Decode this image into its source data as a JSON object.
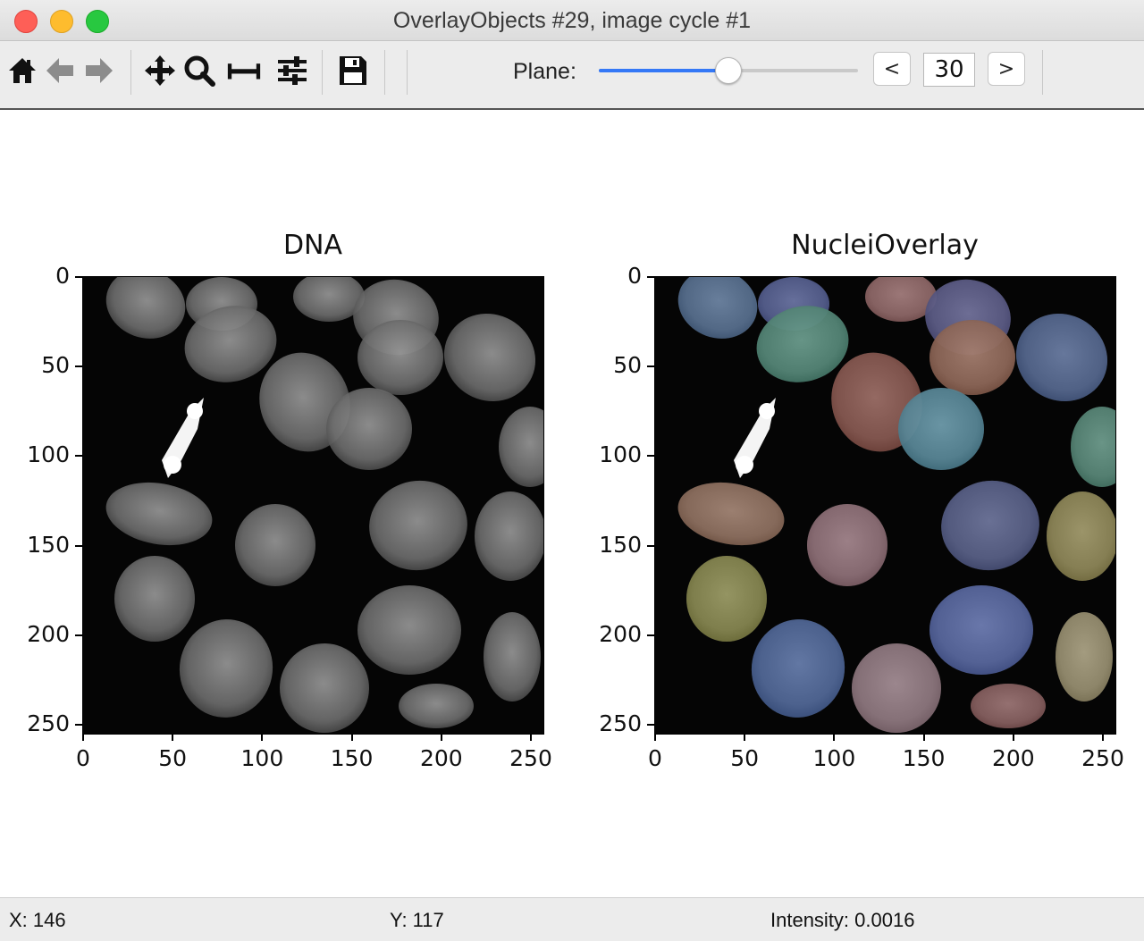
{
  "window": {
    "title": "OverlayObjects #29, image cycle #1"
  },
  "toolbar": {
    "icons": [
      "home-icon",
      "back-arrow-icon",
      "forward-arrow-icon",
      "pan-icon",
      "zoom-icon",
      "subplots-icon",
      "configure-icon",
      "save-icon"
    ],
    "plane_label": "Plane:",
    "plane_prev": "<",
    "plane_next": ">",
    "plane_value": "30",
    "plane_level": 0.5
  },
  "panels": [
    {
      "title": "DNA",
      "yticks": [
        "0",
        "50",
        "100",
        "150",
        "200",
        "250"
      ],
      "xticks": [
        "0",
        "50",
        "100",
        "150",
        "200",
        "250"
      ]
    },
    {
      "title": "NucleiOverlay",
      "yticks": [
        "0",
        "50",
        "100",
        "150",
        "200",
        "250"
      ],
      "xticks": [
        "0",
        "50",
        "100",
        "150",
        "200",
        "250"
      ]
    }
  ],
  "status": {
    "x": "X: 146",
    "y": "Y: 117",
    "intensity": "Intensity: 0.0016"
  }
}
